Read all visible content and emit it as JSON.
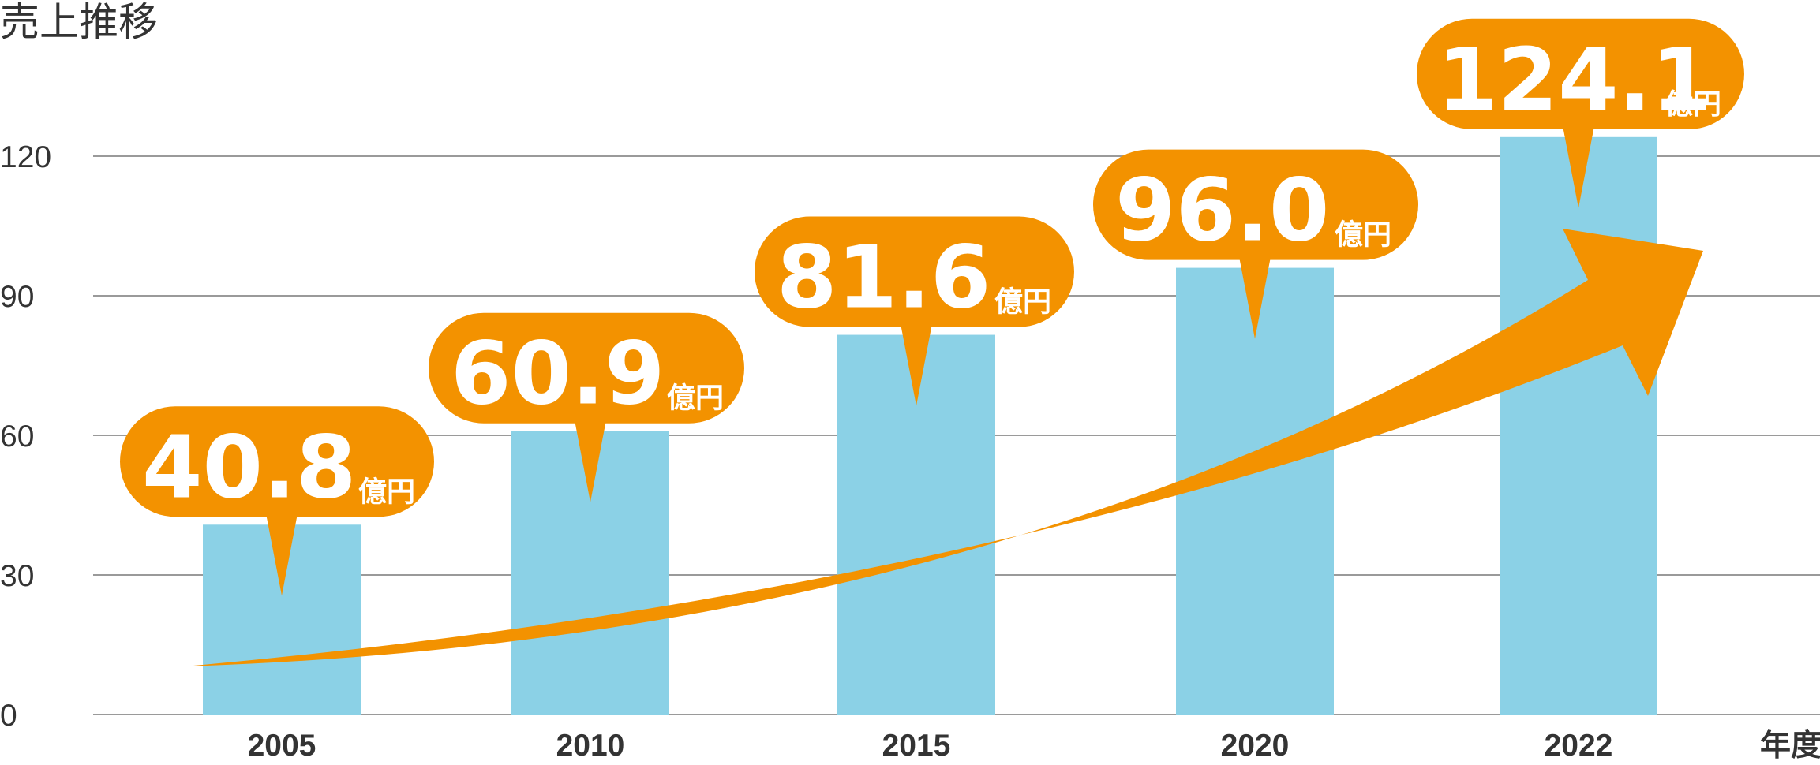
{
  "chart_data": {
    "type": "bar",
    "title": "売上推移",
    "categories": [
      "2005",
      "2010",
      "2015",
      "2020",
      "2022"
    ],
    "values": [
      40.8,
      60.9,
      81.6,
      96.0,
      124.1
    ],
    "value_labels": [
      "40.8",
      "60.9",
      "81.6",
      "96.0",
      "124.1"
    ],
    "value_unit": "億円",
    "x_unit_label": "年度",
    "yticks": [
      "0",
      "30",
      "60",
      "90",
      "120"
    ],
    "ylim": [
      0,
      124.1
    ],
    "grid": true,
    "legend": "none",
    "trend_arrow": true,
    "colors": {
      "bar": "#8bd1e6",
      "callout": "#f39200",
      "arrow": "#f39200",
      "grid": "#9a9a9a",
      "text": "#333333"
    }
  }
}
